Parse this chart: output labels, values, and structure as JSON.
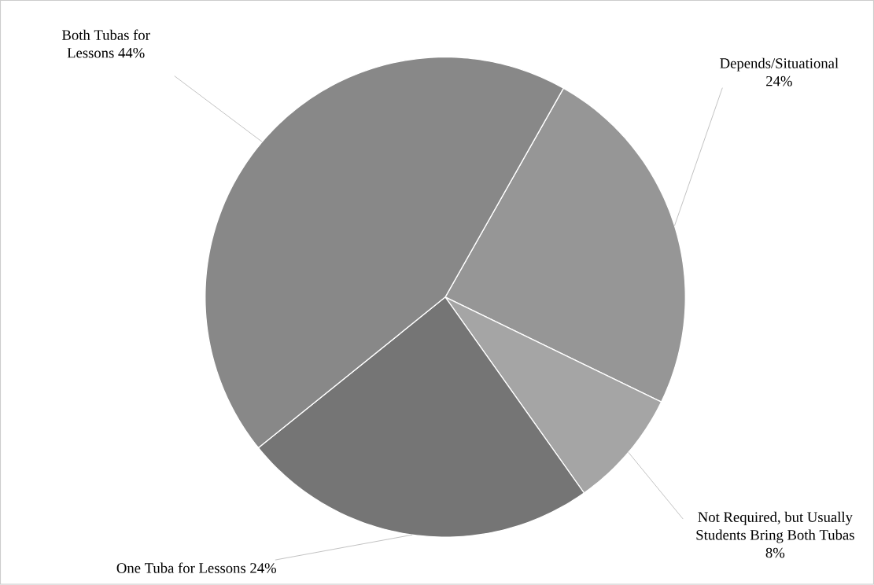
{
  "chart_data": {
    "type": "pie",
    "categories": [
      "Depends/Situational",
      "Not Required, but Usually Students Bring Both Tubas",
      "One Tuba for Lessons",
      "Both Tubas for Lessons"
    ],
    "values": [
      24,
      8,
      24,
      44
    ],
    "value_labels": [
      "24%",
      "8%",
      "24%",
      "44%"
    ],
    "colors": [
      "#969696",
      "#a5a5a5",
      "#757575",
      "#888888"
    ],
    "data_labels": true
  }
}
